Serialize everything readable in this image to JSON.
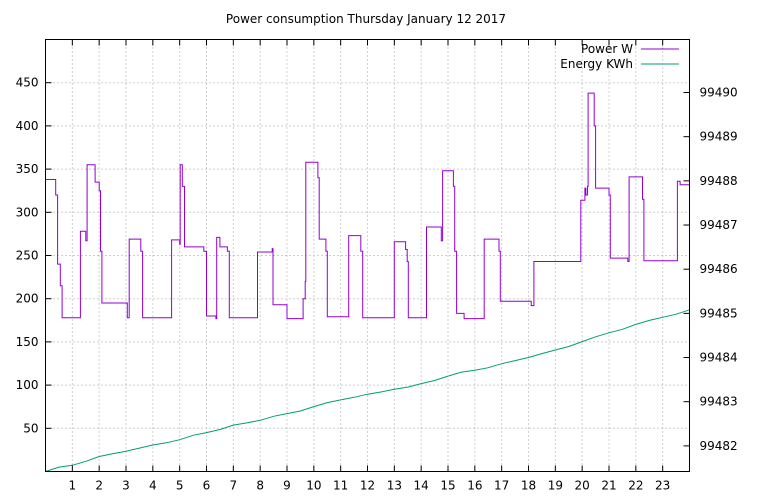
{
  "chart_data": {
    "type": "line",
    "title": "Power consumption Thursday January 12 2017",
    "x_ticks": [
      1,
      2,
      3,
      4,
      5,
      6,
      7,
      8,
      9,
      10,
      11,
      12,
      13,
      14,
      15,
      16,
      17,
      18,
      19,
      20,
      21,
      22,
      23
    ],
    "xlim": [
      0,
      24
    ],
    "y_left_ticks": [
      50,
      100,
      150,
      200,
      250,
      300,
      350,
      400,
      450
    ],
    "y_left_lim": [
      0,
      500
    ],
    "y_right_ticks": [
      99482,
      99483,
      99484,
      99485,
      99486,
      99487,
      99488,
      99489,
      99490
    ],
    "y_right_lim": [
      99481.42,
      99491.2
    ],
    "grid": true,
    "legend_position": "top-right",
    "colors": {
      "power": "#9400d3",
      "energy": "#009e73"
    },
    "series": [
      {
        "name": "Power W",
        "axis": "left",
        "points": [
          [
            0.0,
            338
          ],
          [
            0.38,
            338
          ],
          [
            0.38,
            320
          ],
          [
            0.45,
            320
          ],
          [
            0.45,
            240
          ],
          [
            0.55,
            240
          ],
          [
            0.55,
            215
          ],
          [
            0.62,
            215
          ],
          [
            0.62,
            178
          ],
          [
            1.3,
            178
          ],
          [
            1.3,
            278
          ],
          [
            1.5,
            278
          ],
          [
            1.5,
            267
          ],
          [
            1.55,
            267
          ],
          [
            1.55,
            355
          ],
          [
            1.85,
            355
          ],
          [
            1.85,
            335
          ],
          [
            2.0,
            335
          ],
          [
            2.0,
            325
          ],
          [
            2.05,
            325
          ],
          [
            2.05,
            255
          ],
          [
            2.1,
            255
          ],
          [
            2.1,
            195
          ],
          [
            3.05,
            195
          ],
          [
            3.05,
            178
          ],
          [
            3.12,
            178
          ],
          [
            3.12,
            269
          ],
          [
            3.55,
            269
          ],
          [
            3.55,
            255
          ],
          [
            3.62,
            255
          ],
          [
            3.62,
            178
          ],
          [
            4.7,
            178
          ],
          [
            4.7,
            268
          ],
          [
            5.0,
            268
          ],
          [
            5.0,
            263
          ],
          [
            5.02,
            263
          ],
          [
            5.02,
            355
          ],
          [
            5.1,
            355
          ],
          [
            5.1,
            330
          ],
          [
            5.18,
            330
          ],
          [
            5.18,
            260
          ],
          [
            5.9,
            260
          ],
          [
            5.9,
            255
          ],
          [
            6.0,
            255
          ],
          [
            6.0,
            180
          ],
          [
            6.35,
            180
          ],
          [
            6.35,
            177
          ],
          [
            6.38,
            177
          ],
          [
            6.38,
            271
          ],
          [
            6.5,
            271
          ],
          [
            6.5,
            260
          ],
          [
            6.78,
            260
          ],
          [
            6.78,
            255
          ],
          [
            6.85,
            255
          ],
          [
            6.85,
            178
          ],
          [
            7.9,
            178
          ],
          [
            7.9,
            254
          ],
          [
            8.45,
            254
          ],
          [
            8.45,
            258
          ],
          [
            8.48,
            258
          ],
          [
            8.48,
            193
          ],
          [
            9.0,
            193
          ],
          [
            9.0,
            177
          ],
          [
            9.6,
            177
          ],
          [
            9.6,
            200
          ],
          [
            9.68,
            200
          ],
          [
            9.68,
            220
          ],
          [
            9.7,
            220
          ],
          [
            9.7,
            358
          ],
          [
            10.15,
            358
          ],
          [
            10.15,
            340
          ],
          [
            10.2,
            340
          ],
          [
            10.2,
            269
          ],
          [
            10.45,
            269
          ],
          [
            10.45,
            255
          ],
          [
            10.5,
            255
          ],
          [
            10.5,
            179
          ],
          [
            11.3,
            179
          ],
          [
            11.3,
            273
          ],
          [
            11.75,
            273
          ],
          [
            11.75,
            255
          ],
          [
            11.82,
            255
          ],
          [
            11.82,
            178
          ],
          [
            13.0,
            178
          ],
          [
            13.0,
            266
          ],
          [
            13.42,
            266
          ],
          [
            13.42,
            257
          ],
          [
            13.48,
            257
          ],
          [
            13.48,
            243
          ],
          [
            13.52,
            243
          ],
          [
            13.52,
            178
          ],
          [
            14.2,
            178
          ],
          [
            14.2,
            283
          ],
          [
            14.75,
            283
          ],
          [
            14.75,
            267
          ],
          [
            14.8,
            267
          ],
          [
            14.8,
            348
          ],
          [
            15.2,
            348
          ],
          [
            15.2,
            330
          ],
          [
            15.25,
            330
          ],
          [
            15.25,
            255
          ],
          [
            15.32,
            255
          ],
          [
            15.32,
            183
          ],
          [
            15.6,
            183
          ],
          [
            15.6,
            177
          ],
          [
            16.35,
            177
          ],
          [
            16.35,
            269
          ],
          [
            16.9,
            269
          ],
          [
            16.9,
            255
          ],
          [
            16.95,
            255
          ],
          [
            16.95,
            197
          ],
          [
            18.1,
            197
          ],
          [
            18.1,
            192
          ],
          [
            18.2,
            192
          ],
          [
            18.2,
            243
          ],
          [
            19.95,
            243
          ],
          [
            19.95,
            314
          ],
          [
            20.1,
            314
          ],
          [
            20.1,
            328
          ],
          [
            20.14,
            328
          ],
          [
            20.14,
            320
          ],
          [
            20.2,
            320
          ],
          [
            20.2,
            330
          ],
          [
            20.22,
            330
          ],
          [
            20.22,
            438
          ],
          [
            20.45,
            438
          ],
          [
            20.45,
            400
          ],
          [
            20.5,
            400
          ],
          [
            20.5,
            328
          ],
          [
            21.0,
            328
          ],
          [
            21.0,
            320
          ],
          [
            21.05,
            320
          ],
          [
            21.05,
            247
          ],
          [
            21.7,
            247
          ],
          [
            21.7,
            243
          ],
          [
            21.75,
            243
          ],
          [
            21.75,
            341
          ],
          [
            22.25,
            341
          ],
          [
            22.25,
            315
          ],
          [
            22.3,
            315
          ],
          [
            22.3,
            244
          ],
          [
            23.55,
            244
          ],
          [
            23.55,
            336
          ],
          [
            23.65,
            336
          ],
          [
            23.65,
            332
          ],
          [
            24.0,
            332
          ],
          [
            24.0,
            318
          ]
        ]
      },
      {
        "name": "Energy KWh",
        "axis": "right",
        "points": [
          [
            0.0,
            99481.42
          ],
          [
            0.5,
            99481.52
          ],
          [
            1.0,
            99481.56
          ],
          [
            1.5,
            99481.65
          ],
          [
            2.0,
            99481.76
          ],
          [
            2.5,
            99481.82
          ],
          [
            3.0,
            99481.88
          ],
          [
            3.5,
            99481.95
          ],
          [
            4.0,
            99482.02
          ],
          [
            4.5,
            99482.07
          ],
          [
            5.0,
            99482.14
          ],
          [
            5.5,
            99482.24
          ],
          [
            6.0,
            99482.3
          ],
          [
            6.5,
            99482.37
          ],
          [
            7.0,
            99482.47
          ],
          [
            7.5,
            99482.52
          ],
          [
            8.0,
            99482.58
          ],
          [
            8.5,
            99482.67
          ],
          [
            9.0,
            99482.73
          ],
          [
            9.5,
            99482.79
          ],
          [
            10.0,
            99482.89
          ],
          [
            10.5,
            99482.98
          ],
          [
            11.0,
            99483.04
          ],
          [
            11.5,
            99483.1
          ],
          [
            12.0,
            99483.17
          ],
          [
            12.5,
            99483.22
          ],
          [
            13.0,
            99483.28
          ],
          [
            13.5,
            99483.33
          ],
          [
            14.0,
            99483.41
          ],
          [
            14.5,
            99483.48
          ],
          [
            15.0,
            99483.58
          ],
          [
            15.5,
            99483.67
          ],
          [
            16.0,
            99483.71
          ],
          [
            16.5,
            99483.77
          ],
          [
            17.0,
            99483.86
          ],
          [
            17.5,
            99483.93
          ],
          [
            18.0,
            99484.0
          ],
          [
            18.5,
            99484.09
          ],
          [
            19.0,
            99484.17
          ],
          [
            19.5,
            99484.25
          ],
          [
            20.0,
            99484.36
          ],
          [
            20.5,
            99484.47
          ],
          [
            21.0,
            99484.56
          ],
          [
            21.5,
            99484.64
          ],
          [
            22.0,
            99484.75
          ],
          [
            22.5,
            99484.84
          ],
          [
            23.0,
            99484.91
          ],
          [
            23.5,
            99484.98
          ],
          [
            24.0,
            99485.08
          ]
        ]
      }
    ]
  }
}
